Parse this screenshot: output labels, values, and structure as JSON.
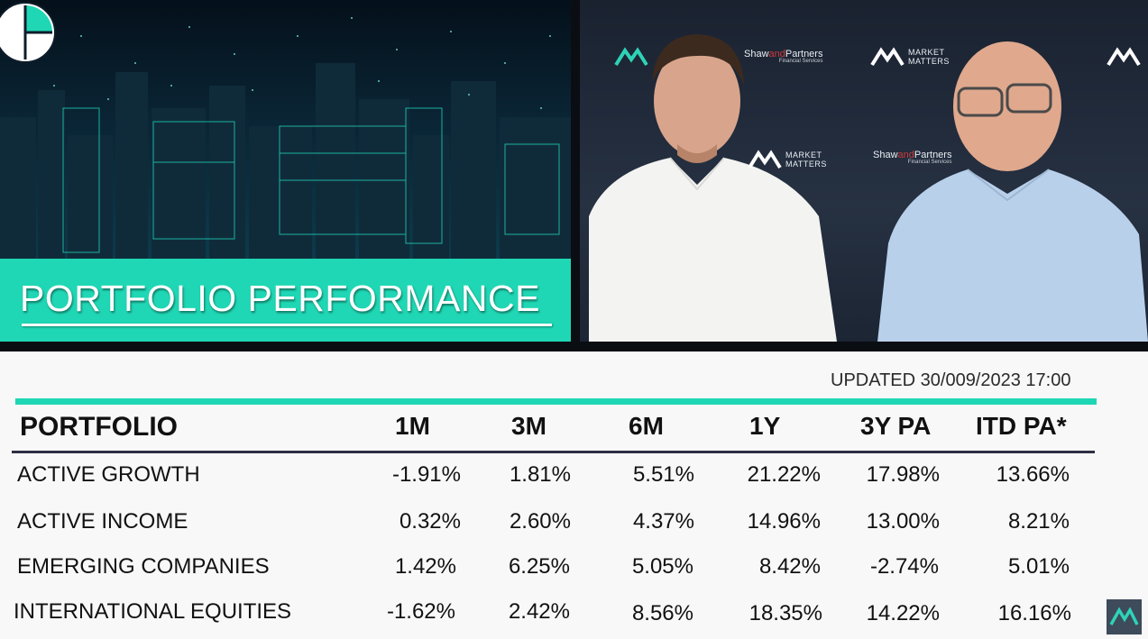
{
  "banner": {
    "title": "PORTFOLIO PERFORMANCE"
  },
  "video": {
    "watermarks": {
      "shaw_prefix": "Shaw",
      "shaw_and": "and",
      "shaw_suffix": "Partners",
      "shaw_sub": "Financial Services",
      "market_line1": "MARKET",
      "market_line2": "MATTERS"
    }
  },
  "table": {
    "updated": "UPDATED 30/009/2023   17:00",
    "headers": {
      "portfolio": "PORTFOLIO",
      "m1": "1M",
      "m3": "3M",
      "m6": "6M",
      "y1": "1Y",
      "y3pa": "3Y PA",
      "itdpa": "ITD PA*"
    },
    "rows": [
      {
        "name": "ACTIVE GROWTH",
        "m1": "-1.91%",
        "m3": "1.81%",
        "m6": "5.51%",
        "y1": "21.22%",
        "y3pa": "17.98%",
        "itdpa": "13.66%"
      },
      {
        "name": "ACTIVE INCOME",
        "m1": "0.32%",
        "m3": "2.60%",
        "m6": "4.37%",
        "y1": "14.96%",
        "y3pa": "13.00%",
        "itdpa": "8.21%"
      },
      {
        "name": "EMERGING COMPANIES",
        "m1": "1.42%",
        "m3": "6.25%",
        "m6": "5.05%",
        "y1": "8.42%",
        "y3pa": "-2.74%",
        "itdpa": "5.01%"
      },
      {
        "name": "INTERNATIONAL EQUITIES",
        "m1": "-1.62%",
        "m3": "2.42%",
        "m6": "8.56%",
        "y1": "18.35%",
        "y3pa": "14.22%",
        "itdpa": "16.16%"
      }
    ]
  },
  "colors": {
    "accent_teal": "#1fd7b4",
    "header_rule": "#2e2e44"
  }
}
